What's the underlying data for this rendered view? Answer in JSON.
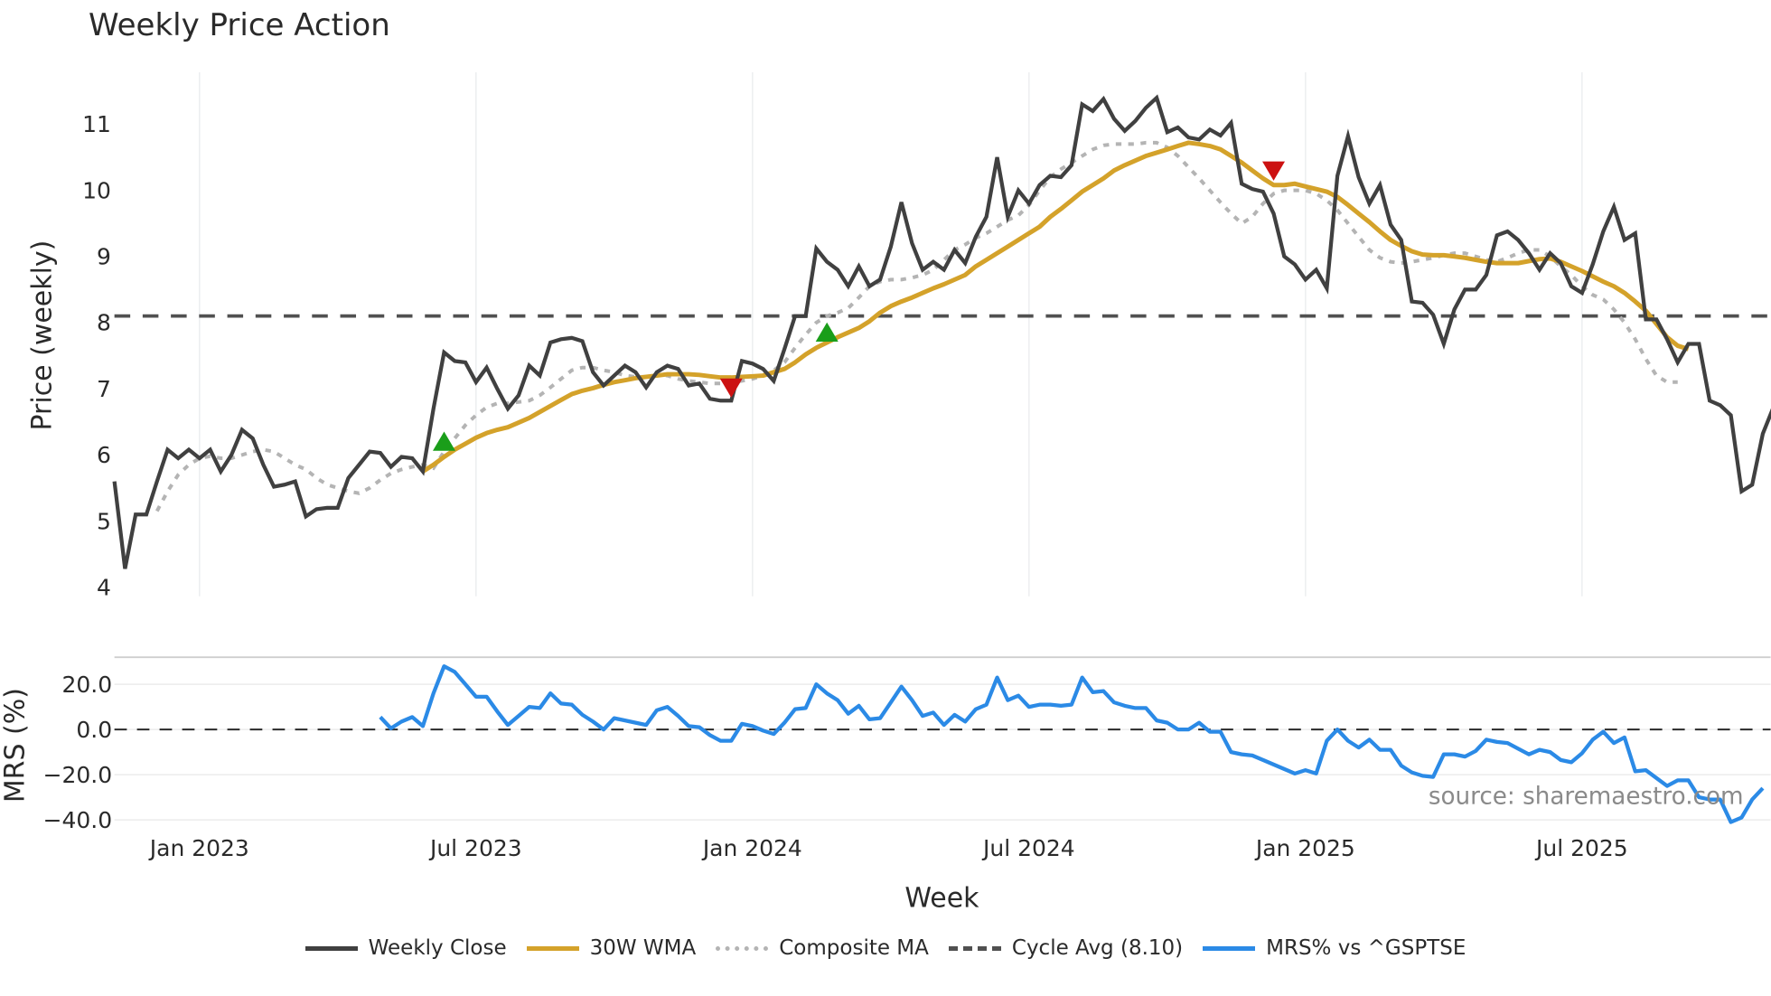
{
  "title": "Weekly Price Action",
  "source_note": "source: sharemaestro.com",
  "legend": [
    {
      "label": "Weekly Close",
      "color": "#404040",
      "style": "solid"
    },
    {
      "label": "30W WMA",
      "color": "#d4a22a",
      "style": "solid"
    },
    {
      "label": "Composite MA",
      "color": "#b4b4b4",
      "style": "dotted"
    },
    {
      "label": "Cycle Avg (8.10)",
      "color": "#505050",
      "style": "dashed"
    },
    {
      "label": "MRS% vs ^GSPTSE",
      "color": "#2b8ae6",
      "style": "solid"
    }
  ],
  "chart_data": [
    {
      "type": "line",
      "title": "Weekly Price Action",
      "xlabel": "Week",
      "ylabel": "Price (weekly)",
      "ylim": [
        4,
        11.8
      ],
      "yticks": [
        4,
        5,
        6,
        7,
        8,
        9,
        10,
        11
      ],
      "xticks": [
        "Jan 2023",
        "Jul 2023",
        "Jan 2024",
        "Jul 2024",
        "Jan 2025",
        "Jul 2025"
      ],
      "xtick_week_index": [
        8,
        34,
        60,
        86,
        112,
        138
      ],
      "grid": "vertical",
      "x_start": "~Nov 2022",
      "x_step": "1 week",
      "series": [
        {
          "name": "Weekly Close",
          "start_index": 0,
          "values": [
            5.6,
            4.28,
            5.1,
            5.1,
            5.6,
            6.08,
            5.95,
            6.08,
            5.95,
            6.08,
            5.75,
            6.0,
            6.38,
            6.25,
            5.85,
            5.52,
            5.55,
            5.6,
            5.07,
            5.18,
            5.2,
            5.2,
            5.65,
            5.85,
            6.05,
            6.03,
            5.82,
            5.97,
            5.95,
            5.75,
            6.7,
            7.55,
            7.42,
            7.4,
            7.1,
            7.32,
            7.0,
            6.7,
            6.9,
            7.35,
            7.2,
            7.7,
            7.75,
            7.77,
            7.72,
            7.25,
            7.05,
            7.2,
            7.35,
            7.25,
            7.02,
            7.25,
            7.35,
            7.3,
            7.05,
            7.08,
            6.85,
            6.82,
            6.82,
            7.42,
            7.38,
            7.3,
            7.12,
            7.6,
            8.1,
            8.1,
            9.12,
            8.92,
            8.8,
            8.55,
            8.85,
            8.55,
            8.65,
            9.15,
            9.82,
            9.2,
            8.8,
            8.92,
            8.8,
            9.1,
            8.9,
            9.3,
            9.6,
            10.5,
            9.6,
            10.0,
            9.8,
            10.08,
            10.22,
            10.2,
            10.38,
            11.3,
            11.2,
            11.38,
            11.08,
            10.9,
            11.05,
            11.25,
            11.4,
            10.88,
            10.95,
            10.8,
            10.77,
            10.92,
            10.83,
            11.02,
            10.1,
            10.02,
            9.98,
            9.65,
            9.0,
            8.88,
            8.65,
            8.8,
            8.52,
            10.22,
            10.82,
            10.2,
            9.8,
            10.08,
            9.48,
            9.25,
            8.32,
            8.3,
            8.12,
            7.68,
            8.2,
            8.5,
            8.5,
            8.72,
            9.32,
            9.38,
            9.25,
            9.05,
            8.8,
            9.05,
            8.9,
            8.55,
            8.45,
            8.88,
            9.38,
            9.75,
            9.25,
            9.35,
            8.05,
            8.05,
            7.75,
            7.4,
            7.68,
            7.68,
            6.82,
            6.75,
            6.6,
            5.45,
            5.55,
            6.32,
            6.72
          ]
        },
        {
          "name": "30W WMA",
          "start_index": 29,
          "values": [
            5.75,
            5.85,
            5.97,
            6.08,
            6.17,
            6.26,
            6.33,
            6.38,
            6.42,
            6.49,
            6.56,
            6.65,
            6.74,
            6.83,
            6.92,
            6.97,
            7.01,
            7.06,
            7.1,
            7.13,
            7.16,
            7.18,
            7.2,
            7.22,
            7.22,
            7.22,
            7.21,
            7.19,
            7.17,
            7.17,
            7.18,
            7.19,
            7.2,
            7.25,
            7.3,
            7.4,
            7.52,
            7.62,
            7.7,
            7.78,
            7.85,
            7.92,
            8.02,
            8.15,
            8.25,
            8.32,
            8.38,
            8.45,
            8.52,
            8.58,
            8.65,
            8.72,
            8.85,
            8.95,
            9.05,
            9.15,
            9.25,
            9.35,
            9.45,
            9.6,
            9.72,
            9.85,
            9.98,
            10.08,
            10.18,
            10.3,
            10.38,
            10.45,
            10.52,
            10.57,
            10.62,
            10.67,
            10.72,
            10.7,
            10.67,
            10.62,
            10.52,
            10.42,
            10.3,
            10.18,
            10.08,
            10.08,
            10.1,
            10.06,
            10.02,
            9.98,
            9.9,
            9.78,
            9.65,
            9.52,
            9.38,
            9.25,
            9.16,
            9.08,
            9.03,
            9.02,
            9.02,
            9.0,
            8.98,
            8.95,
            8.92,
            8.9,
            8.9,
            8.9,
            8.93,
            8.96,
            8.97,
            8.92,
            8.85,
            8.78,
            8.7,
            8.62,
            8.55,
            8.45,
            8.32,
            8.18,
            7.98,
            7.78,
            7.65,
            7.6
          ]
        },
        {
          "name": "Composite MA",
          "start_index": 4,
          "values": [
            5.15,
            5.45,
            5.7,
            5.85,
            5.95,
            5.98,
            5.95,
            5.95,
            6.0,
            6.05,
            6.08,
            6.05,
            5.95,
            5.85,
            5.78,
            5.65,
            5.55,
            5.5,
            5.45,
            5.42,
            5.5,
            5.62,
            5.72,
            5.78,
            5.82,
            5.85,
            5.8,
            6.05,
            6.25,
            6.45,
            6.6,
            6.72,
            6.78,
            6.78,
            6.8,
            6.82,
            6.9,
            7.02,
            7.15,
            7.28,
            7.32,
            7.32,
            7.28,
            7.25,
            7.2,
            7.18,
            7.18,
            7.2,
            7.2,
            7.15,
            7.12,
            7.1,
            7.08,
            7.08,
            7.1,
            7.12,
            7.15,
            7.2,
            7.28,
            7.4,
            7.62,
            7.82,
            8.0,
            8.1,
            8.15,
            8.22,
            8.38,
            8.55,
            8.62,
            8.65,
            8.65,
            8.68,
            8.72,
            8.8,
            8.95,
            9.1,
            9.18,
            9.28,
            9.35,
            9.45,
            9.55,
            9.62,
            9.78,
            10.0,
            10.2,
            10.32,
            10.42,
            10.52,
            10.62,
            10.68,
            10.7,
            10.7,
            10.7,
            10.72,
            10.72,
            10.65,
            10.52,
            10.35,
            10.18,
            10.0,
            9.82,
            9.65,
            9.5,
            9.6,
            9.8,
            9.95,
            10.0,
            10.0,
            10.0,
            9.95,
            9.85,
            9.7,
            9.5,
            9.3,
            9.1,
            8.98,
            8.92,
            8.9,
            8.92,
            8.95,
            8.98,
            9.02,
            9.05,
            9.05,
            9.0,
            8.95,
            8.92,
            8.98,
            9.05,
            9.1,
            9.1,
            9.0,
            8.85,
            8.72,
            8.55,
            8.42,
            8.35,
            8.2,
            8.0,
            7.75,
            7.45,
            7.2,
            7.1,
            7.1
          ]
        },
        {
          "name": "Cycle Avg (8.10)",
          "value": 8.1,
          "style": "horizontal-dashed"
        }
      ],
      "markers": [
        {
          "type": "buy",
          "shape": "triangle-up",
          "color": "#1a9e1a",
          "week_index": 31,
          "value": 6.2
        },
        {
          "type": "sell",
          "shape": "triangle-down",
          "color": "#cc1111",
          "week_index": 58,
          "value": 7.02
        },
        {
          "type": "buy",
          "shape": "triangle-up",
          "color": "#1a9e1a",
          "week_index": 67,
          "value": 7.85
        },
        {
          "type": "sell",
          "shape": "triangle-down",
          "color": "#cc1111",
          "week_index": 109,
          "value": 10.3
        }
      ]
    },
    {
      "type": "line",
      "title": "",
      "xlabel": "Week",
      "ylabel": "MRS (%)",
      "ylim": [
        -42,
        32
      ],
      "yticks": [
        -40.0,
        -20.0,
        0.0,
        20.0
      ],
      "ytick_labels": [
        "−40.0",
        "−20.0",
        "0.0",
        "20.0"
      ],
      "zero_line": "dashed",
      "series": [
        {
          "name": "MRS% vs ^GSPTSE",
          "start_index": 25,
          "values": [
            5.5,
            0.5,
            3.5,
            5.5,
            1.5,
            16,
            28,
            25.5,
            20,
            14.5,
            14.5,
            8,
            2,
            6,
            10,
            9.5,
            16,
            11.5,
            11,
            6.5,
            3.5,
            0,
            5,
            4,
            3,
            2,
            8.5,
            10,
            6,
            1.5,
            1,
            -2.5,
            -5,
            -5,
            2.5,
            1.5,
            -0.5,
            -2,
            3,
            9,
            9.5,
            20,
            16,
            13,
            7,
            10.5,
            4.5,
            5,
            12,
            19,
            13,
            6,
            7.5,
            2,
            6.5,
            3.5,
            9,
            11,
            23,
            13,
            15,
            10,
            11,
            11,
            10.5,
            11,
            23,
            16.5,
            17,
            12,
            10.5,
            9.5,
            9.5,
            4,
            3,
            0,
            0,
            3,
            -1,
            -1,
            -10,
            -11,
            -11.5,
            -13.5,
            -15.5,
            -17.5,
            -19.5,
            -18,
            -19.5,
            -5,
            0,
            -5,
            -8,
            -4.5,
            -9,
            -9,
            -16,
            -19,
            -20.5,
            -21,
            -11,
            -11,
            -12,
            -9.5,
            -4.5,
            -5.5,
            -6,
            -8.5,
            -11,
            -9,
            -10,
            -13.5,
            -14.5,
            -10.5,
            -4.5,
            -1,
            -6,
            -3.5,
            -18.5,
            -18,
            -21.5,
            -25,
            -22.5,
            -22.5,
            -30,
            -31,
            -31,
            -41,
            -39,
            -31,
            -26
          ]
        }
      ]
    }
  ],
  "axes": {
    "price_yticks": [
      "4",
      "5",
      "6",
      "7",
      "8",
      "9",
      "10",
      "11"
    ],
    "price_ylabel": "Price (weekly)",
    "mrs_yticks": [
      "−40.0",
      "−20.0",
      "0.0",
      "20.0"
    ],
    "mrs_ylabel": "MRS (%)",
    "xticks": [
      "Jan 2023",
      "Jul 2023",
      "Jan 2024",
      "Jul 2024",
      "Jan 2025",
      "Jul 2025"
    ],
    "xlabel": "Week"
  }
}
